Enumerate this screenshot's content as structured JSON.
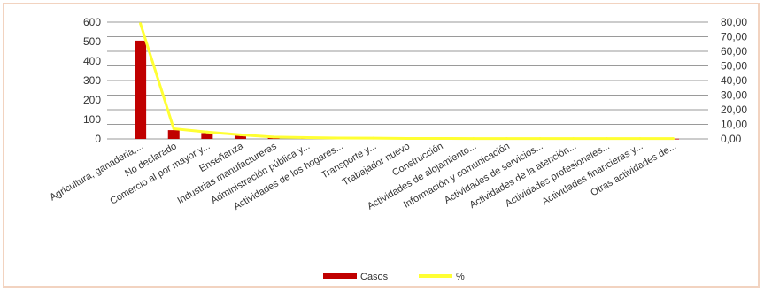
{
  "chart_data": {
    "type": "bar",
    "categories": [
      "Agricultura, ganaderia,...",
      "No declarado",
      "Comercio al por mayor y...",
      "Enseñanza",
      "Industrias manufactureras",
      "Administración pública y...",
      "Actividades de los hogares...",
      "Transporte y...",
      "Trabajador nuevo",
      "Construcción",
      "Actividades de alojamiento...",
      "Información y comunicación",
      "Actividades de servicios...",
      "Actividades de la atención...",
      "Actividades profesionales...",
      "Actividades financieras y...",
      "Otras actividades de..."
    ],
    "series": [
      {
        "name": "Casos",
        "type": "bar",
        "axis": "left",
        "color": "#c00000",
        "values": [
          505,
          45,
          30,
          18,
          8,
          6,
          4,
          3,
          2,
          2,
          1,
          1,
          1,
          1,
          1,
          1,
          1
        ]
      },
      {
        "name": "%",
        "type": "line",
        "axis": "right",
        "color": "#ffff33",
        "values": [
          79,
          7,
          4.7,
          2.8,
          1.3,
          0.9,
          0.6,
          0.5,
          0.3,
          0.3,
          0.2,
          0.2,
          0.2,
          0.2,
          0.2,
          0.2,
          0.2
        ]
      }
    ],
    "y_left": {
      "ylim": [
        0,
        600
      ],
      "ticks": [
        "0",
        "100",
        "200",
        "300",
        "400",
        "500",
        "600"
      ]
    },
    "y_right": {
      "ylim": [
        0,
        80
      ],
      "ticks": [
        "0,00",
        "10,00",
        "20,00",
        "30,00",
        "40,00",
        "50,00",
        "60,00",
        "70,00",
        "80,00"
      ]
    },
    "grid": true,
    "legend": "bottom"
  }
}
